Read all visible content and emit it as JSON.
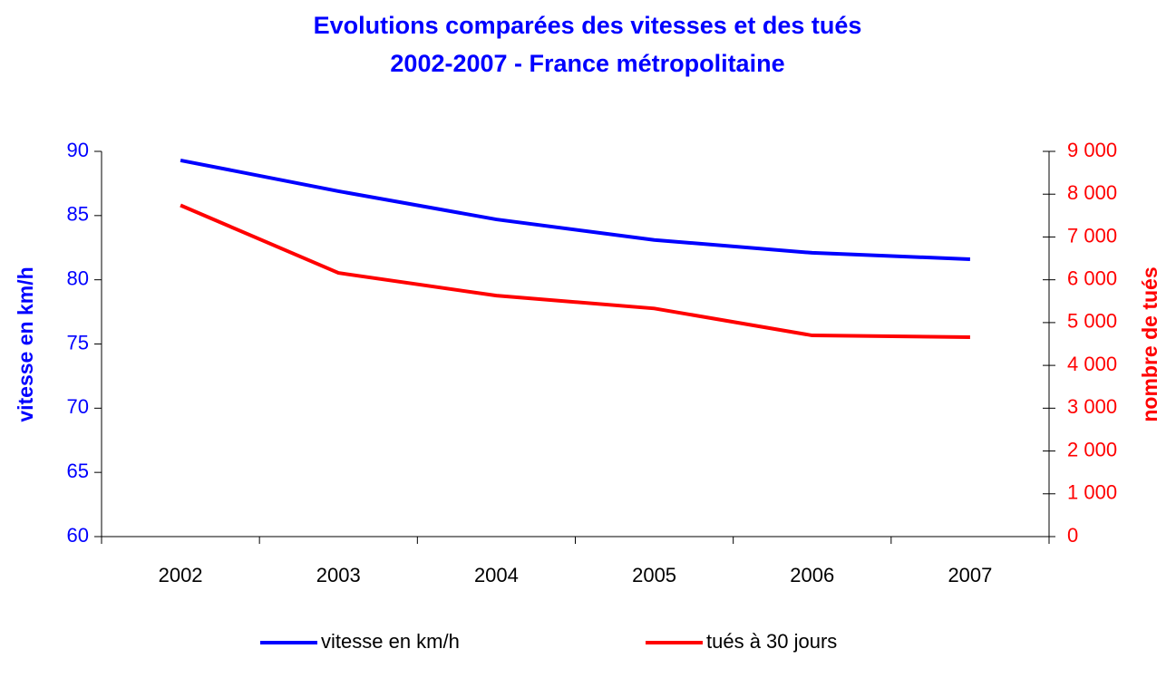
{
  "chart_data": {
    "type": "line",
    "title": "Evolutions comparées des vitesses et des tués",
    "subtitle": "2002-2007 - France métropolitaine",
    "ylabel": "vitesse en km/h",
    "y2label": "nombre de tués",
    "categories": [
      "2002",
      "2003",
      "2004",
      "2005",
      "2006",
      "2007"
    ],
    "series": [
      {
        "name": "vitesse en km/h",
        "color": "#0000ff",
        "values": [
          89.3,
          86.9,
          84.7,
          83.1,
          82.1,
          81.6
        ]
      },
      {
        "name": "tués à 30 jours",
        "color": "#ff0000",
        "axis": "y2",
        "values": [
          7740,
          6160,
          5630,
          5330,
          4700,
          4660
        ]
      }
    ],
    "ylim": [
      60,
      90
    ],
    "yticks": [
      60,
      65,
      70,
      75,
      80,
      85,
      90
    ],
    "y2lim": [
      0,
      9000
    ],
    "y2ticks": [
      0,
      {
        "value": 1000,
        "label": "1 000"
      },
      {
        "value": 2000,
        "label": "2 000"
      },
      {
        "value": 3000,
        "label": "3 000"
      },
      {
        "value": 4000,
        "label": "4 000"
      },
      {
        "value": 5000,
        "label": "5 000"
      },
      {
        "value": 6000,
        "label": "6 000"
      },
      {
        "value": 7000,
        "label": "7 000"
      },
      {
        "value": 8000,
        "label": "8 000"
      },
      {
        "value": 9000,
        "label": "9 000"
      }
    ],
    "grid": false,
    "legend": "bottom"
  }
}
